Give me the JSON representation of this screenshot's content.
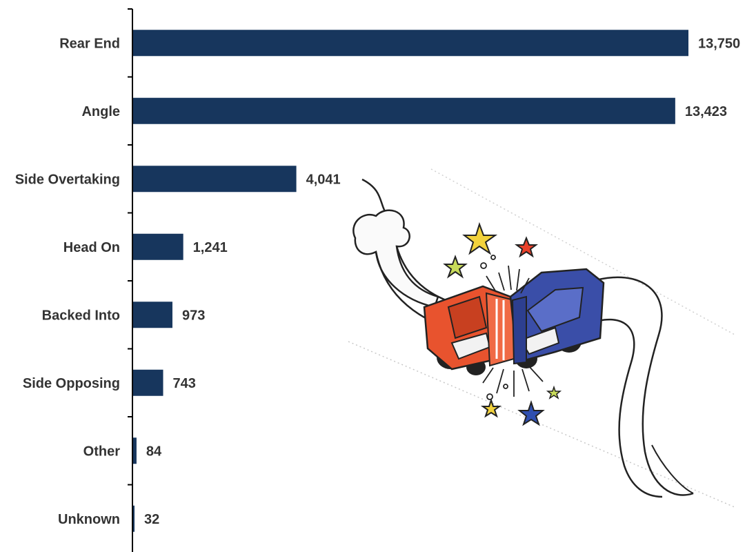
{
  "chart_data": {
    "type": "bar",
    "orientation": "horizontal",
    "categories": [
      "Rear End",
      "Angle",
      "Side Overtaking",
      "Head On",
      "Backed Into",
      "Side Opposing",
      "Other",
      "Unknown"
    ],
    "values": [
      13750,
      13423,
      4041,
      1241,
      973,
      743,
      84,
      32
    ],
    "data_labels": [
      "13,750",
      "13,423",
      "4,041",
      "1,241",
      "973",
      "743",
      "84",
      "32"
    ],
    "xlim": [
      0,
      13750
    ],
    "grid": false,
    "legend": "none",
    "bar_color": "#17365d"
  },
  "illustration": {
    "name": "car-collision-cartoon",
    "colors": {
      "red_car": "#e8532e",
      "blue_car": "#3a4ea8",
      "star_gold": "#f2d23c",
      "star_green": "#c8db5a",
      "star_red": "#e8402a",
      "star_blue": "#2f4fb0"
    }
  }
}
